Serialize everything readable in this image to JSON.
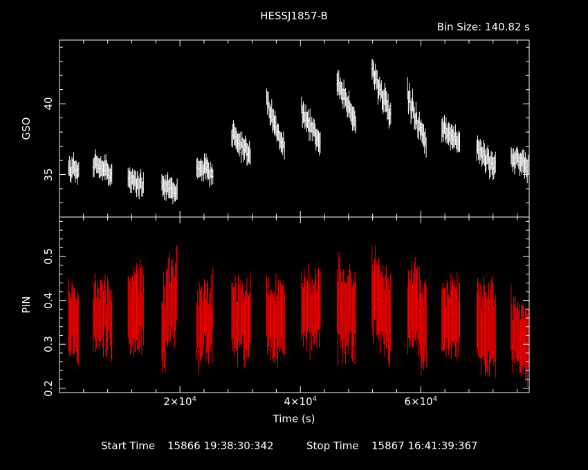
{
  "title": "HESSJ1857-B",
  "bin_size": "Bin Size: 140.82 s",
  "footer": {
    "start_label": "Start Time",
    "start_value": "15866 19:38:30:342",
    "stop_label": "Stop Time",
    "stop_value": "15867 16:41:39:367"
  },
  "colors": {
    "gso": "#ffffff",
    "pin": "#ff0000",
    "axes": "#ffffff",
    "background": "#000000"
  },
  "chart_data": {
    "type": "scatter",
    "title": "HESSJ1857-B",
    "xlabel": "Time (s)",
    "xlim": [
      0,
      78000
    ],
    "x_ticks": [
      {
        "mantissa": "2×10",
        "exp": "4",
        "value": 20000
      },
      {
        "mantissa": "4×10",
        "exp": "4",
        "value": 40000
      },
      {
        "mantissa": "6×10",
        "exp": "4",
        "value": 60000
      }
    ],
    "panels": [
      {
        "name": "GSO",
        "ylabel": "GSO",
        "ylim": [
          32.0,
          44.5
        ],
        "y_ticks": [
          35,
          40
        ],
        "color": "#ffffff",
        "segments": [
          {
            "x0": 1500,
            "x1": 3300,
            "y0": 35.5,
            "y1": 35.2,
            "scatter": 0.45,
            "err": 0.65
          },
          {
            "x0": 5600,
            "x1": 8800,
            "y0": 35.9,
            "y1": 35.0,
            "scatter": 0.45,
            "err": 0.65
          },
          {
            "x0": 11400,
            "x1": 14000,
            "y0": 34.6,
            "y1": 34.4,
            "scatter": 0.5,
            "err": 0.65
          },
          {
            "x0": 17000,
            "x1": 19600,
            "y0": 34.5,
            "y1": 33.6,
            "scatter": 0.5,
            "err": 0.65
          },
          {
            "x0": 22800,
            "x1": 25500,
            "y0": 35.6,
            "y1": 35.2,
            "scatter": 0.5,
            "err": 0.65
          },
          {
            "x0": 28600,
            "x1": 31700,
            "y0": 37.9,
            "y1": 36.2,
            "scatter": 0.45,
            "err": 0.7
          },
          {
            "x0": 34400,
            "x1": 37400,
            "y0": 39.9,
            "y1": 36.9,
            "scatter": 0.5,
            "err": 0.7
          },
          {
            "x0": 40200,
            "x1": 43300,
            "y0": 39.6,
            "y1": 37.1,
            "scatter": 0.5,
            "err": 0.7
          },
          {
            "x0": 46100,
            "x1": 49200,
            "y0": 41.7,
            "y1": 38.6,
            "scatter": 0.5,
            "err": 0.75
          },
          {
            "x0": 51900,
            "x1": 55000,
            "y0": 42.4,
            "y1": 39.1,
            "scatter": 0.5,
            "err": 0.75
          },
          {
            "x0": 57800,
            "x1": 60900,
            "y0": 40.5,
            "y1": 37.1,
            "scatter": 0.5,
            "err": 0.7
          },
          {
            "x0": 63500,
            "x1": 66500,
            "y0": 38.1,
            "y1": 37.3,
            "scatter": 0.45,
            "err": 0.7
          },
          {
            "x0": 69300,
            "x1": 72400,
            "y0": 36.9,
            "y1": 35.6,
            "scatter": 0.45,
            "err": 0.7
          },
          {
            "x0": 75000,
            "x1": 77900,
            "y0": 36.2,
            "y1": 35.6,
            "scatter": 0.45,
            "err": 0.7
          }
        ]
      },
      {
        "name": "PIN",
        "ylabel": "PIN",
        "ylim": [
          0.19,
          0.59
        ],
        "y_ticks": [
          0.2,
          0.3,
          0.4,
          0.5
        ],
        "color": "#ff0000",
        "segments": [
          {
            "x0": 1500,
            "x1": 3300,
            "y0": 0.36,
            "y1": 0.33,
            "scatter": 0.03,
            "err": 0.07
          },
          {
            "x0": 5600,
            "x1": 8800,
            "y0": 0.37,
            "y1": 0.36,
            "scatter": 0.035,
            "err": 0.07
          },
          {
            "x0": 11400,
            "x1": 14000,
            "y0": 0.37,
            "y1": 0.38,
            "scatter": 0.04,
            "err": 0.08
          },
          {
            "x0": 17000,
            "x1": 19600,
            "y0": 0.32,
            "y1": 0.44,
            "scatter": 0.045,
            "err": 0.08
          },
          {
            "x0": 22800,
            "x1": 25500,
            "y0": 0.35,
            "y1": 0.36,
            "scatter": 0.04,
            "err": 0.07
          },
          {
            "x0": 28600,
            "x1": 31700,
            "y0": 0.37,
            "y1": 0.36,
            "scatter": 0.035,
            "err": 0.07
          },
          {
            "x0": 34400,
            "x1": 37400,
            "y0": 0.36,
            "y1": 0.35,
            "scatter": 0.03,
            "err": 0.07
          },
          {
            "x0": 40200,
            "x1": 43300,
            "y0": 0.38,
            "y1": 0.38,
            "scatter": 0.035,
            "err": 0.07
          },
          {
            "x0": 46100,
            "x1": 49200,
            "y0": 0.39,
            "y1": 0.37,
            "scatter": 0.04,
            "err": 0.08
          },
          {
            "x0": 51900,
            "x1": 55000,
            "y0": 0.42,
            "y1": 0.36,
            "scatter": 0.04,
            "err": 0.08
          },
          {
            "x0": 57800,
            "x1": 60900,
            "y0": 0.39,
            "y1": 0.35,
            "scatter": 0.04,
            "err": 0.08
          },
          {
            "x0": 63500,
            "x1": 66500,
            "y0": 0.36,
            "y1": 0.36,
            "scatter": 0.035,
            "err": 0.07
          },
          {
            "x0": 69300,
            "x1": 72400,
            "y0": 0.35,
            "y1": 0.32,
            "scatter": 0.04,
            "err": 0.08
          },
          {
            "x0": 75000,
            "x1": 77900,
            "y0": 0.34,
            "y1": 0.31,
            "scatter": 0.035,
            "err": 0.07
          }
        ]
      }
    ]
  }
}
